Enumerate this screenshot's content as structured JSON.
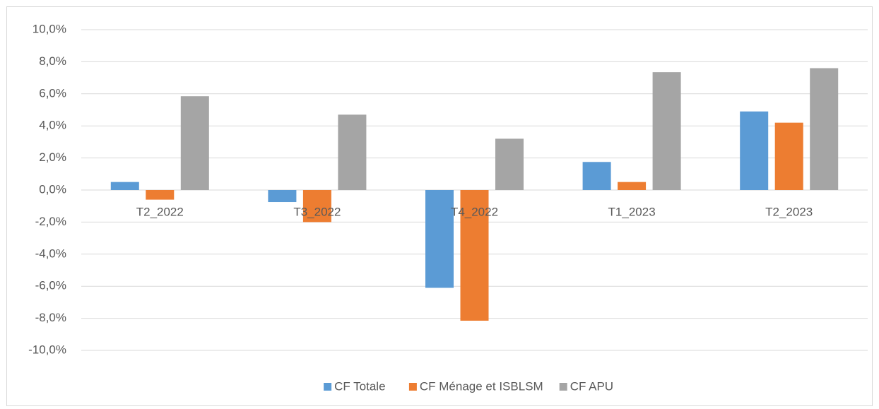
{
  "chart_data": {
    "type": "bar",
    "categories": [
      "T2_2022",
      "T3_2022",
      "T4_2022",
      "T1_2023",
      "T2_2023"
    ],
    "series": [
      {
        "name": "CF Totale",
        "color": "#5b9bd5",
        "values": [
          0.5,
          -0.75,
          -6.1,
          1.75,
          4.9
        ]
      },
      {
        "name": "CF Ménage et ISBLSM",
        "color": "#ed7d31",
        "values": [
          -0.6,
          -2.0,
          -8.15,
          0.5,
          4.2
        ]
      },
      {
        "name": "CF APU",
        "color": "#a5a5a5",
        "values": [
          5.85,
          4.7,
          3.2,
          7.35,
          7.6
        ]
      }
    ],
    "ylim": [
      -10,
      10
    ],
    "yticks": [
      {
        "value": -10,
        "label": "-10,0%"
      },
      {
        "value": -8,
        "label": "-8,0%"
      },
      {
        "value": -6,
        "label": "-6,0%"
      },
      {
        "value": -4,
        "label": "-4,0%"
      },
      {
        "value": -2,
        "label": "-2,0%"
      },
      {
        "value": 0,
        "label": "0,0%"
      },
      {
        "value": 2,
        "label": "2,0%"
      },
      {
        "value": 4,
        "label": "4,0%"
      },
      {
        "value": 6,
        "label": "6,0%"
      },
      {
        "value": 8,
        "label": "8,0%"
      },
      {
        "value": 10,
        "label": "10,0%"
      }
    ],
    "grid": true,
    "legend": "bottom"
  }
}
